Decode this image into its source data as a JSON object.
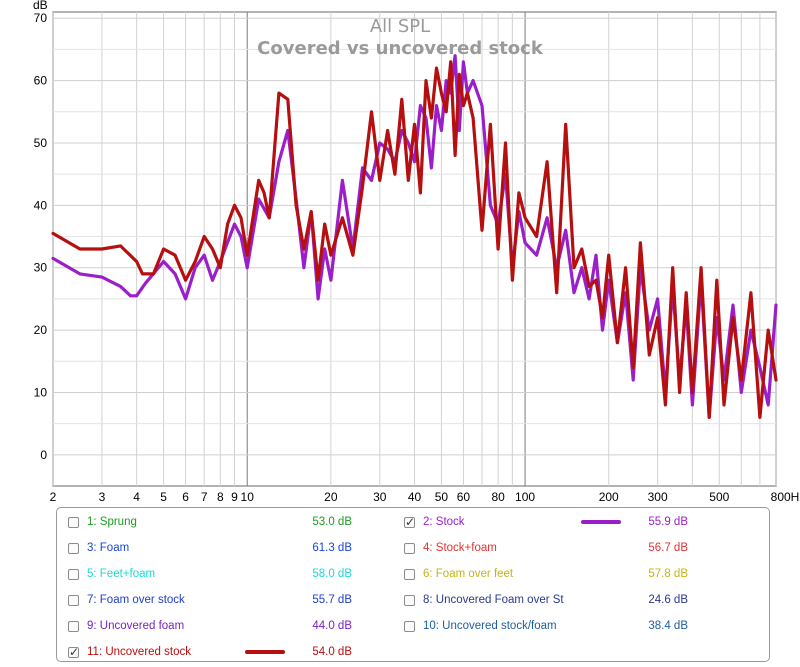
{
  "chart_data": {
    "type": "line",
    "title": "All SPL",
    "subtitle": "Covered vs uncovered stock",
    "ylabel": "dB",
    "xlabel": "",
    "x_scale": "log",
    "xlim": [
      2,
      800
    ],
    "ylim": [
      -5,
      71
    ],
    "yticks": [
      "0",
      "10",
      "20",
      "30",
      "40",
      "50",
      "60",
      "70"
    ],
    "xticks": [
      "2",
      "3",
      "4",
      "5",
      "6",
      "7",
      "8",
      "9",
      "10",
      "20",
      "30",
      "40",
      "50",
      "60",
      "80",
      "100",
      "200",
      "300",
      "500",
      "800Hz"
    ],
    "grid": true,
    "series": [
      {
        "name": "2: Stock",
        "color": "#9b1fc8",
        "x": [
          2,
          2.5,
          3,
          3.5,
          3.8,
          4,
          4.3,
          5,
          5.5,
          6,
          6.5,
          7,
          7.5,
          8,
          9,
          9.5,
          10,
          11,
          12,
          13,
          14,
          15,
          16,
          17,
          18,
          19,
          20,
          22,
          24,
          26,
          28,
          30,
          32,
          34,
          36,
          38,
          40,
          42,
          44,
          46,
          48,
          50,
          52,
          54,
          56,
          58,
          60,
          62,
          65,
          70,
          75,
          80,
          85,
          90,
          95,
          100,
          110,
          120,
          130,
          140,
          150,
          160,
          170,
          180,
          190,
          200,
          215,
          230,
          245,
          260,
          280,
          300,
          320,
          340,
          360,
          380,
          400,
          430,
          460,
          490,
          520,
          560,
          600,
          650,
          700,
          750,
          800
        ],
        "y": [
          31.5,
          29,
          28.5,
          27,
          25.5,
          25.5,
          27.5,
          31,
          29,
          25,
          30,
          32,
          28,
          31,
          37,
          35,
          30,
          41,
          38,
          47,
          52,
          41,
          30,
          39,
          25,
          33,
          28,
          44,
          33,
          46,
          44,
          50,
          49,
          47,
          52,
          50,
          47,
          56,
          54,
          46,
          56,
          52,
          60,
          58,
          64,
          52,
          63,
          58,
          60,
          56,
          40,
          37,
          45,
          30,
          39,
          34,
          32,
          38,
          30,
          36,
          26,
          30,
          25,
          32,
          20,
          28,
          18,
          26,
          12,
          30,
          20,
          25,
          10,
          27,
          12,
          24,
          8,
          28,
          6,
          22,
          12,
          24,
          10,
          20,
          14,
          8,
          24
        ]
      },
      {
        "name": "11: Uncovered stock",
        "color": "#b50f0f",
        "x": [
          2,
          2.5,
          3,
          3.5,
          4,
          4.2,
          4.6,
          5,
          5.5,
          6,
          6.5,
          7,
          7.5,
          8,
          8.5,
          9,
          9.5,
          10,
          11,
          11.5,
          12,
          13,
          14,
          15,
          16,
          17,
          18,
          19,
          20,
          22,
          24,
          26,
          28,
          30,
          32,
          34,
          36,
          38,
          40,
          42,
          44,
          46,
          48,
          50,
          52,
          54,
          56,
          58,
          60,
          62,
          65,
          70,
          75,
          80,
          85,
          90,
          95,
          100,
          110,
          120,
          130,
          140,
          150,
          160,
          170,
          180,
          190,
          200,
          215,
          230,
          245,
          260,
          280,
          300,
          320,
          340,
          360,
          380,
          400,
          430,
          460,
          490,
          520,
          560,
          600,
          650,
          700,
          750,
          800
        ],
        "y": [
          35.5,
          33,
          33,
          33.5,
          31,
          29,
          29,
          33,
          32,
          28,
          31,
          35,
          33,
          30,
          37,
          40,
          38,
          32,
          44,
          42,
          38,
          58,
          57,
          40,
          33,
          39,
          28,
          37,
          32,
          38,
          32,
          43,
          55,
          44,
          52,
          45,
          57,
          44,
          53,
          42,
          60,
          54,
          62,
          58,
          55,
          63,
          48,
          61,
          56,
          58,
          54,
          36,
          53,
          33,
          50,
          28,
          42,
          38,
          35,
          47,
          26,
          53,
          30,
          33,
          27,
          28,
          22,
          32,
          18,
          30,
          14,
          34,
          16,
          22,
          8,
          30,
          10,
          26,
          10,
          30,
          6,
          28,
          8,
          22,
          12,
          26,
          6,
          20,
          12
        ]
      }
    ]
  },
  "legend": {
    "items": [
      {
        "label": "1: Sprung",
        "value": "53.0 dB",
        "color": "#1f9a1f",
        "checked": false
      },
      {
        "label": "2: Stock",
        "value": "55.9 dB",
        "color": "#9b1fc8",
        "checked": true
      },
      {
        "label": "3: Foam",
        "value": "61.3 dB",
        "color": "#1846d6",
        "checked": false
      },
      {
        "label": "4: Stock+foam",
        "value": "56.7 dB",
        "color": "#e03434",
        "checked": false
      },
      {
        "label": "5: Feet+foam",
        "value": "58.0 dB",
        "color": "#1ed6d6",
        "checked": false
      },
      {
        "label": "6: Foam over feet",
        "value": "57.8 dB",
        "color": "#c6b41a",
        "checked": false
      },
      {
        "label": "7: Foam over stock",
        "value": "55.7 dB",
        "color": "#2040c8",
        "checked": false
      },
      {
        "label": "8: Uncovered Foam over St",
        "value": "24.6 dB",
        "color": "#2a3a8c",
        "checked": false
      },
      {
        "label": "9: Uncovered foam",
        "value": "44.0 dB",
        "color": "#7a22c4",
        "checked": false
      },
      {
        "label": "10: Uncovered stock/foam",
        "value": "38.4 dB",
        "color": "#1e5ea0",
        "checked": false
      },
      {
        "label": "11: Uncovered stock",
        "value": "54.0 dB",
        "color": "#b50f0f",
        "checked": true
      }
    ]
  }
}
